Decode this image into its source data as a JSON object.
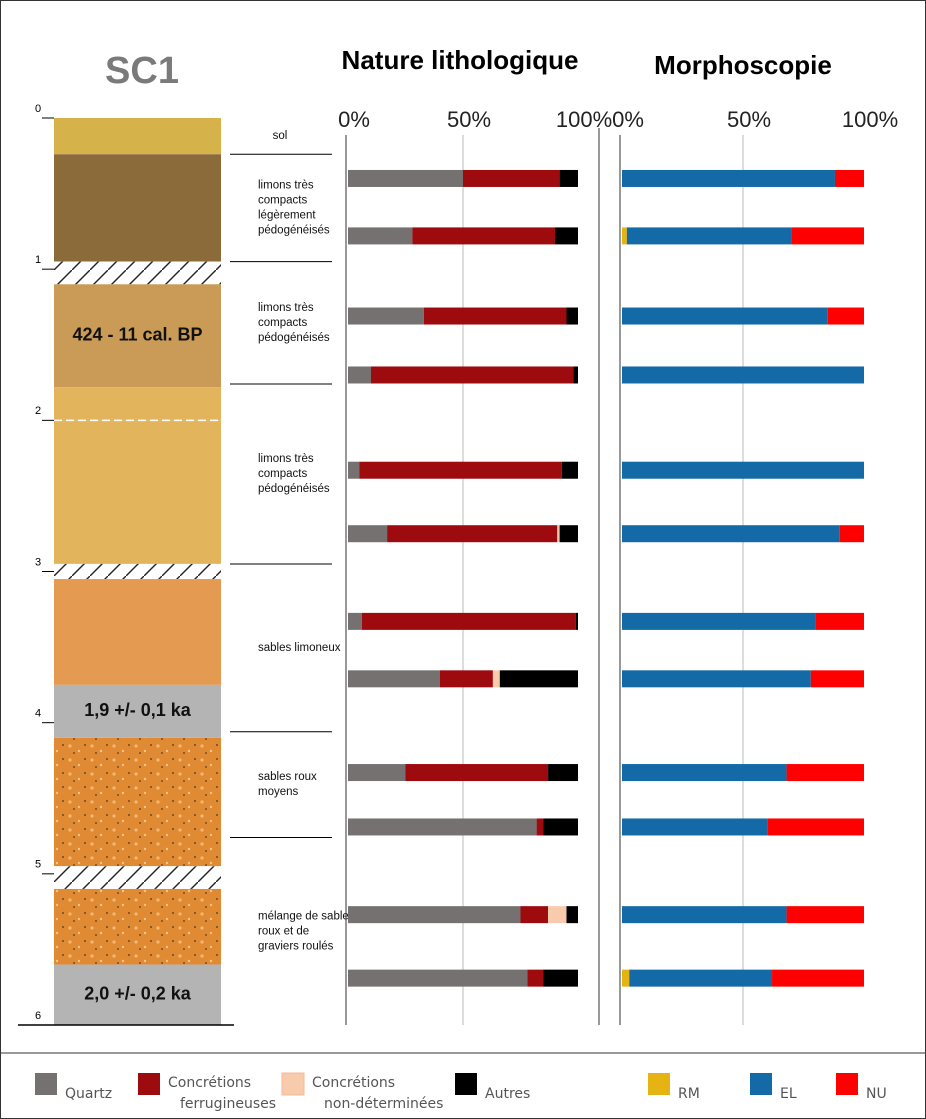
{
  "title": "SC1",
  "column": {
    "ylim": [
      0,
      6
    ],
    "yticks": [
      0,
      1,
      2,
      3,
      4,
      5,
      6
    ],
    "layers": [
      {
        "top": 0,
        "bottom": 0.24,
        "color": "#d6b24a"
      },
      {
        "top": 0.24,
        "bottom": 0.95,
        "color": "#8c6b3b"
      },
      {
        "top": 0.95,
        "bottom": 1.1,
        "pattern": "hatch"
      },
      {
        "top": 1.1,
        "bottom": 1.78,
        "color": "#c99b57",
        "label": "424 - 11 cal. BP"
      },
      {
        "top": 1.78,
        "bottom": 2.0,
        "color": "#e2b45c"
      },
      {
        "top": 2.0,
        "bottom": 2.95,
        "color": "#e2b45c",
        "dashed_top": true
      },
      {
        "top": 2.95,
        "bottom": 3.05,
        "pattern": "hatch"
      },
      {
        "top": 3.05,
        "bottom": 3.75,
        "color": "#e59a52"
      },
      {
        "top": 3.75,
        "bottom": 4.1,
        "color": "#b4b4b4",
        "label": "1,9 +/- 0,1 ka"
      },
      {
        "top": 4.1,
        "bottom": 4.95,
        "color": "#e08a33",
        "pattern": "dots"
      },
      {
        "top": 4.95,
        "bottom": 5.1,
        "pattern": "hatch"
      },
      {
        "top": 5.1,
        "bottom": 5.6,
        "color": "#e08a33",
        "pattern": "dots"
      },
      {
        "top": 5.6,
        "bottom": 6.0,
        "color": "#b4b4b4",
        "label": "2,0 +/- 0,2 ka"
      }
    ],
    "units": [
      {
        "top": 0,
        "bottom": 0.24,
        "lines": [
          "sol"
        ]
      },
      {
        "top": 0.24,
        "bottom": 0.95,
        "lines": [
          "limons très",
          "compacts",
          "légèrement",
          "pédogénéisés"
        ]
      },
      {
        "top": 0.95,
        "bottom": 1.76,
        "lines": [
          "limons très",
          "compacts",
          "pédogénéisés"
        ]
      },
      {
        "top": 1.76,
        "bottom": 2.95,
        "lines": [
          "limons très",
          "compacts",
          "pédogénéisés"
        ]
      },
      {
        "top": 2.95,
        "bottom": 4.06,
        "lines": [
          "sables limoneux"
        ]
      },
      {
        "top": 4.06,
        "bottom": 4.76,
        "lines": [
          "sables roux",
          "moyens"
        ]
      },
      {
        "top": 4.76,
        "bottom": 6.0,
        "lines": [
          "mélange de sables",
          "roux et de",
          "graviers roulés"
        ]
      }
    ]
  },
  "chart_data": [
    {
      "type": "bar",
      "orientation": "horizontal",
      "stacked": true,
      "title": "Nature lithologique",
      "y": [
        0.4,
        0.78,
        1.31,
        1.7,
        2.33,
        2.75,
        3.33,
        3.71,
        4.33,
        4.69,
        5.27,
        5.69
      ],
      "xlim": [
        0,
        100
      ],
      "xticks": [
        {
          "value": 0,
          "label": "0%"
        },
        {
          "value": 50,
          "label": "50%"
        },
        {
          "value": 100,
          "label": "100%"
        }
      ],
      "grid": true,
      "series": [
        {
          "name": "Quartz",
          "color": "#767171",
          "values": [
            50,
            28,
            33,
            10,
            5,
            17,
            6,
            40,
            25,
            82,
            75,
            78
          ]
        },
        {
          "name": "Concrétions ferrugineuses",
          "color": "#9e0b0f",
          "values": [
            42,
            62,
            62,
            88,
            88,
            74,
            93,
            23,
            62,
            3,
            12,
            7
          ]
        },
        {
          "name": "Concrétions non-déterminées",
          "color": "#f8cbad",
          "values": [
            0,
            0,
            0,
            0,
            0,
            1,
            0,
            3,
            0,
            0,
            8,
            0
          ]
        },
        {
          "name": "Autres",
          "color": "#000000",
          "values": [
            8,
            10,
            5,
            2,
            7,
            8,
            1,
            34,
            13,
            15,
            5,
            15
          ]
        }
      ]
    },
    {
      "type": "bar",
      "orientation": "horizontal",
      "stacked": true,
      "title": "Morphoscopie",
      "y": [
        0.4,
        0.78,
        1.31,
        1.7,
        2.33,
        2.75,
        3.33,
        3.71,
        4.33,
        4.69,
        5.27,
        5.69
      ],
      "xlim": [
        0,
        100
      ],
      "xticks": [
        {
          "value": 0,
          "label": "0%"
        },
        {
          "value": 50,
          "label": "50%"
        },
        {
          "value": 100,
          "label": "100%"
        }
      ],
      "grid": true,
      "series": [
        {
          "name": "RM",
          "color": "#e6b412",
          "values": [
            0,
            2,
            0,
            0,
            0,
            0,
            0,
            0,
            0,
            0,
            0,
            3
          ]
        },
        {
          "name": "EL",
          "color": "#136aa6",
          "values": [
            88,
            68,
            85,
            100,
            100,
            90,
            80,
            78,
            68,
            60,
            68,
            59
          ]
        },
        {
          "name": "NU",
          "color": "#ff0000",
          "values": [
            12,
            30,
            15,
            0,
            0,
            10,
            20,
            22,
            32,
            40,
            32,
            38
          ]
        }
      ]
    }
  ]
}
